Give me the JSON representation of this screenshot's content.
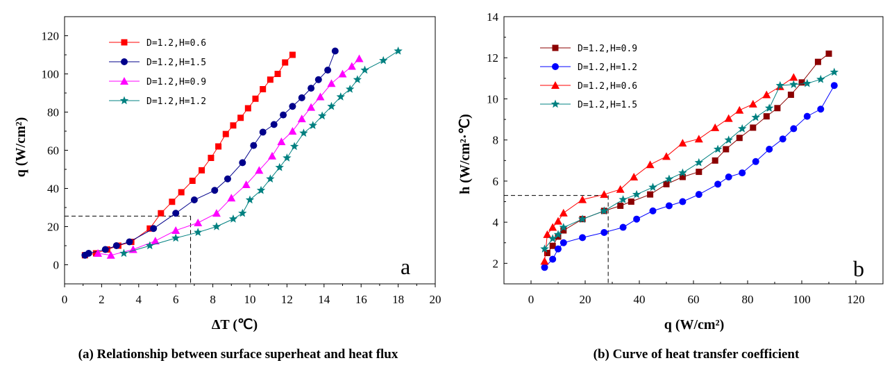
{
  "chart_data": [
    {
      "type": "line",
      "panel_letter": "a",
      "caption": "(a) Relationship between surface superheat and heat flux",
      "xlabel": "ΔT (℃)",
      "ylabel": "q (W/cm²)",
      "xlim": [
        0,
        20
      ],
      "ylim": [
        -10,
        130
      ],
      "xticks": [
        0,
        2,
        4,
        6,
        8,
        10,
        12,
        14,
        16,
        18,
        20
      ],
      "yticks": [
        0,
        20,
        40,
        60,
        80,
        100,
        120
      ],
      "legend_position": "top-left",
      "grid": false,
      "reference_lines": [
        {
          "x": 6.8,
          "y": 25.5
        }
      ],
      "series": [
        {
          "name": "D=1.2,H=0.6",
          "color": "#ff0000",
          "marker": "square",
          "x": [
            1.1,
            1.7,
            2.3,
            2.9,
            3.6,
            4.6,
            5.2,
            5.8,
            6.3,
            6.9,
            7.4,
            7.9,
            8.3,
            8.7,
            9.1,
            9.5,
            9.9,
            10.3,
            10.7,
            11.1,
            11.5,
            11.9,
            12.3
          ],
          "y": [
            5,
            6,
            8,
            10,
            12,
            19,
            27,
            33,
            38,
            44,
            49.5,
            56,
            62,
            68.5,
            73,
            77,
            82,
            87,
            92,
            97,
            100,
            106,
            110
          ]
        },
        {
          "name": "D=1.2,H=1.5",
          "color": "#00008b",
          "marker": "circle",
          "x": [
            1.1,
            1.3,
            2.2,
            2.8,
            3.5,
            4.8,
            6.0,
            7.0,
            8.1,
            8.8,
            9.6,
            10.2,
            10.7,
            11.3,
            11.8,
            12.3,
            12.8,
            13.3,
            13.7,
            14.2,
            14.6
          ],
          "y": [
            5,
            6,
            8,
            10,
            12,
            19,
            27,
            34,
            39,
            45,
            53.5,
            62.5,
            69.5,
            73.5,
            78.5,
            83,
            87.5,
            92.5,
            97,
            102,
            112
          ]
        },
        {
          "name": "D=1.2,H=0.9",
          "color": "#ff00ff",
          "marker": "triangle",
          "x": [
            1.8,
            2.5,
            3.7,
            4.9,
            6.0,
            7.2,
            8.2,
            9.0,
            9.8,
            10.5,
            11.2,
            11.7,
            12.3,
            12.8,
            13.3,
            13.8,
            14.4,
            15.0,
            15.5,
            15.9
          ],
          "y": [
            6,
            5,
            8,
            12.5,
            18,
            22,
            27,
            35,
            42,
            49.5,
            57,
            64.5,
            70,
            76.5,
            82.5,
            88,
            95,
            100,
            104,
            108
          ]
        },
        {
          "name": "D=1.2,H=1.2",
          "color": "#008080",
          "marker": "star",
          "x": [
            3.2,
            4.6,
            6.0,
            7.2,
            8.2,
            9.1,
            9.6,
            10.0,
            10.6,
            11.1,
            11.6,
            12.0,
            12.4,
            12.9,
            13.4,
            13.9,
            14.4,
            14.9,
            15.4,
            15.8,
            16.2,
            17.2,
            18.0
          ],
          "y": [
            6,
            10,
            14,
            17,
            20,
            24,
            27,
            34,
            39,
            45,
            51,
            56,
            62,
            69,
            73,
            78,
            83,
            88,
            92,
            97,
            102,
            107,
            112
          ]
        }
      ]
    },
    {
      "type": "line",
      "panel_letter": "b",
      "caption": "(b) Curve of heat transfer coefficient",
      "xlabel": "q (W/cm²)",
      "ylabel": "h (W/cm²·℃)",
      "xlim": [
        -10,
        130
      ],
      "ylim": [
        1,
        14
      ],
      "xticks": [
        0,
        20,
        40,
        60,
        80,
        100,
        120
      ],
      "yticks": [
        2,
        4,
        6,
        8,
        10,
        12,
        14
      ],
      "legend_position": "top-left",
      "grid": false,
      "reference_lines": [
        {
          "x": 28.5,
          "y": 5.3
        }
      ],
      "series": [
        {
          "name": "D=1.2,H=0.9",
          "color": "#8b0000",
          "marker": "square",
          "x": [
            6,
            8,
            10,
            12,
            19,
            27,
            33,
            37,
            44,
            50,
            56,
            62,
            68,
            72,
            77,
            82,
            87,
            91,
            96,
            100,
            106,
            110
          ],
          "y": [
            2.5,
            2.85,
            3.3,
            3.6,
            4.15,
            4.55,
            4.8,
            5.0,
            5.35,
            5.85,
            6.2,
            6.45,
            7.0,
            7.55,
            8.1,
            8.6,
            9.15,
            9.55,
            10.2,
            10.8,
            11.8,
            12.2
          ]
        },
        {
          "name": "D=1.2,H=1.2",
          "color": "#0000ff",
          "marker": "circle",
          "x": [
            5,
            8,
            10,
            12,
            19,
            27,
            34,
            39,
            45,
            51,
            56,
            62,
            69,
            73,
            78,
            83,
            88,
            93,
            97,
            102,
            107,
            112
          ],
          "y": [
            1.8,
            2.2,
            2.7,
            3.0,
            3.25,
            3.5,
            3.75,
            4.15,
            4.55,
            4.8,
            5.0,
            5.35,
            5.85,
            6.2,
            6.4,
            6.95,
            7.55,
            8.05,
            8.55,
            9.15,
            9.5,
            10.65
          ]
        },
        {
          "name": "D=1.2,H=0.6",
          "color": "#ff0000",
          "marker": "triangle",
          "x": [
            5,
            6,
            8,
            10,
            12,
            19,
            27,
            33,
            38,
            44,
            50,
            56,
            62,
            68,
            73,
            77,
            82,
            87,
            92,
            97
          ],
          "y": [
            2.1,
            3.4,
            3.75,
            4.05,
            4.45,
            5.1,
            5.35,
            5.6,
            6.2,
            6.8,
            7.2,
            7.85,
            8.05,
            8.6,
            9.05,
            9.45,
            9.75,
            10.2,
            10.6,
            11.05
          ]
        },
        {
          "name": "D=1.2,H=1.5",
          "color": "#008080",
          "marker": "star",
          "x": [
            5,
            8,
            10,
            12,
            19,
            27,
            34,
            39,
            45,
            51,
            56,
            62,
            69,
            73,
            78,
            83,
            88,
            92,
            97,
            102,
            107,
            112
          ],
          "y": [
            2.7,
            3.2,
            3.4,
            3.75,
            4.15,
            4.55,
            5.1,
            5.35,
            5.7,
            6.1,
            6.4,
            6.9,
            7.55,
            8.0,
            8.55,
            9.1,
            9.55,
            10.65,
            10.7,
            10.75,
            10.95,
            11.3
          ]
        }
      ]
    }
  ]
}
